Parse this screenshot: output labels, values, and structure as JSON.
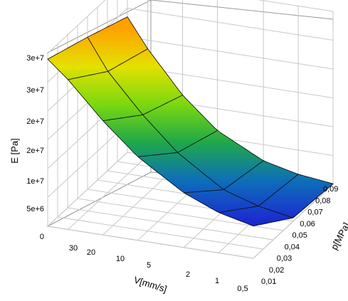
{
  "chart_data": {
    "type": "surface3d",
    "zlabel": "E [Pa]",
    "xlabel": "V[mm/s]",
    "ylabel": "p[MPa]",
    "z_ticks": [
      "0",
      "5e+6",
      "1e+7",
      "2e+7",
      "2e+7",
      "3e+7",
      "3e+7"
    ],
    "z_tick_values": [
      0,
      5000000,
      10000000,
      15000000,
      20000000,
      25000000,
      30000000
    ],
    "v_ticks": [
      "30",
      "20",
      "10",
      "5",
      "2",
      "1",
      "0,5"
    ],
    "p_ticks": [
      "0,01",
      "0,02",
      "0,03",
      "0,04",
      "0,05",
      "0,06",
      "0,07",
      "0,08",
      "0,09"
    ],
    "v_axis_scale": "log",
    "grid": true,
    "colormap": [
      "#0a0a8a",
      "#1a2fd0",
      "#0d6fb8",
      "#1fa84a",
      "#7bd80f",
      "#e4e000",
      "#ffa200"
    ],
    "surface": {
      "v": [
        0.5,
        1,
        2,
        5,
        10,
        20,
        30
      ],
      "p": [
        0.01,
        0.05,
        0.09
      ],
      "E": [
        [
          5600000,
          600000,
          100000
        ],
        [
          7000000,
          1700000,
          800000
        ],
        [
          9500000,
          3600000,
          2200000
        ],
        [
          14500000,
          8800000,
          6200000
        ],
        [
          19800000,
          14400000,
          11400000
        ],
        [
          26000000,
          21000000,
          18500000
        ],
        [
          29000000,
          26400000,
          23500000
        ]
      ]
    }
  }
}
